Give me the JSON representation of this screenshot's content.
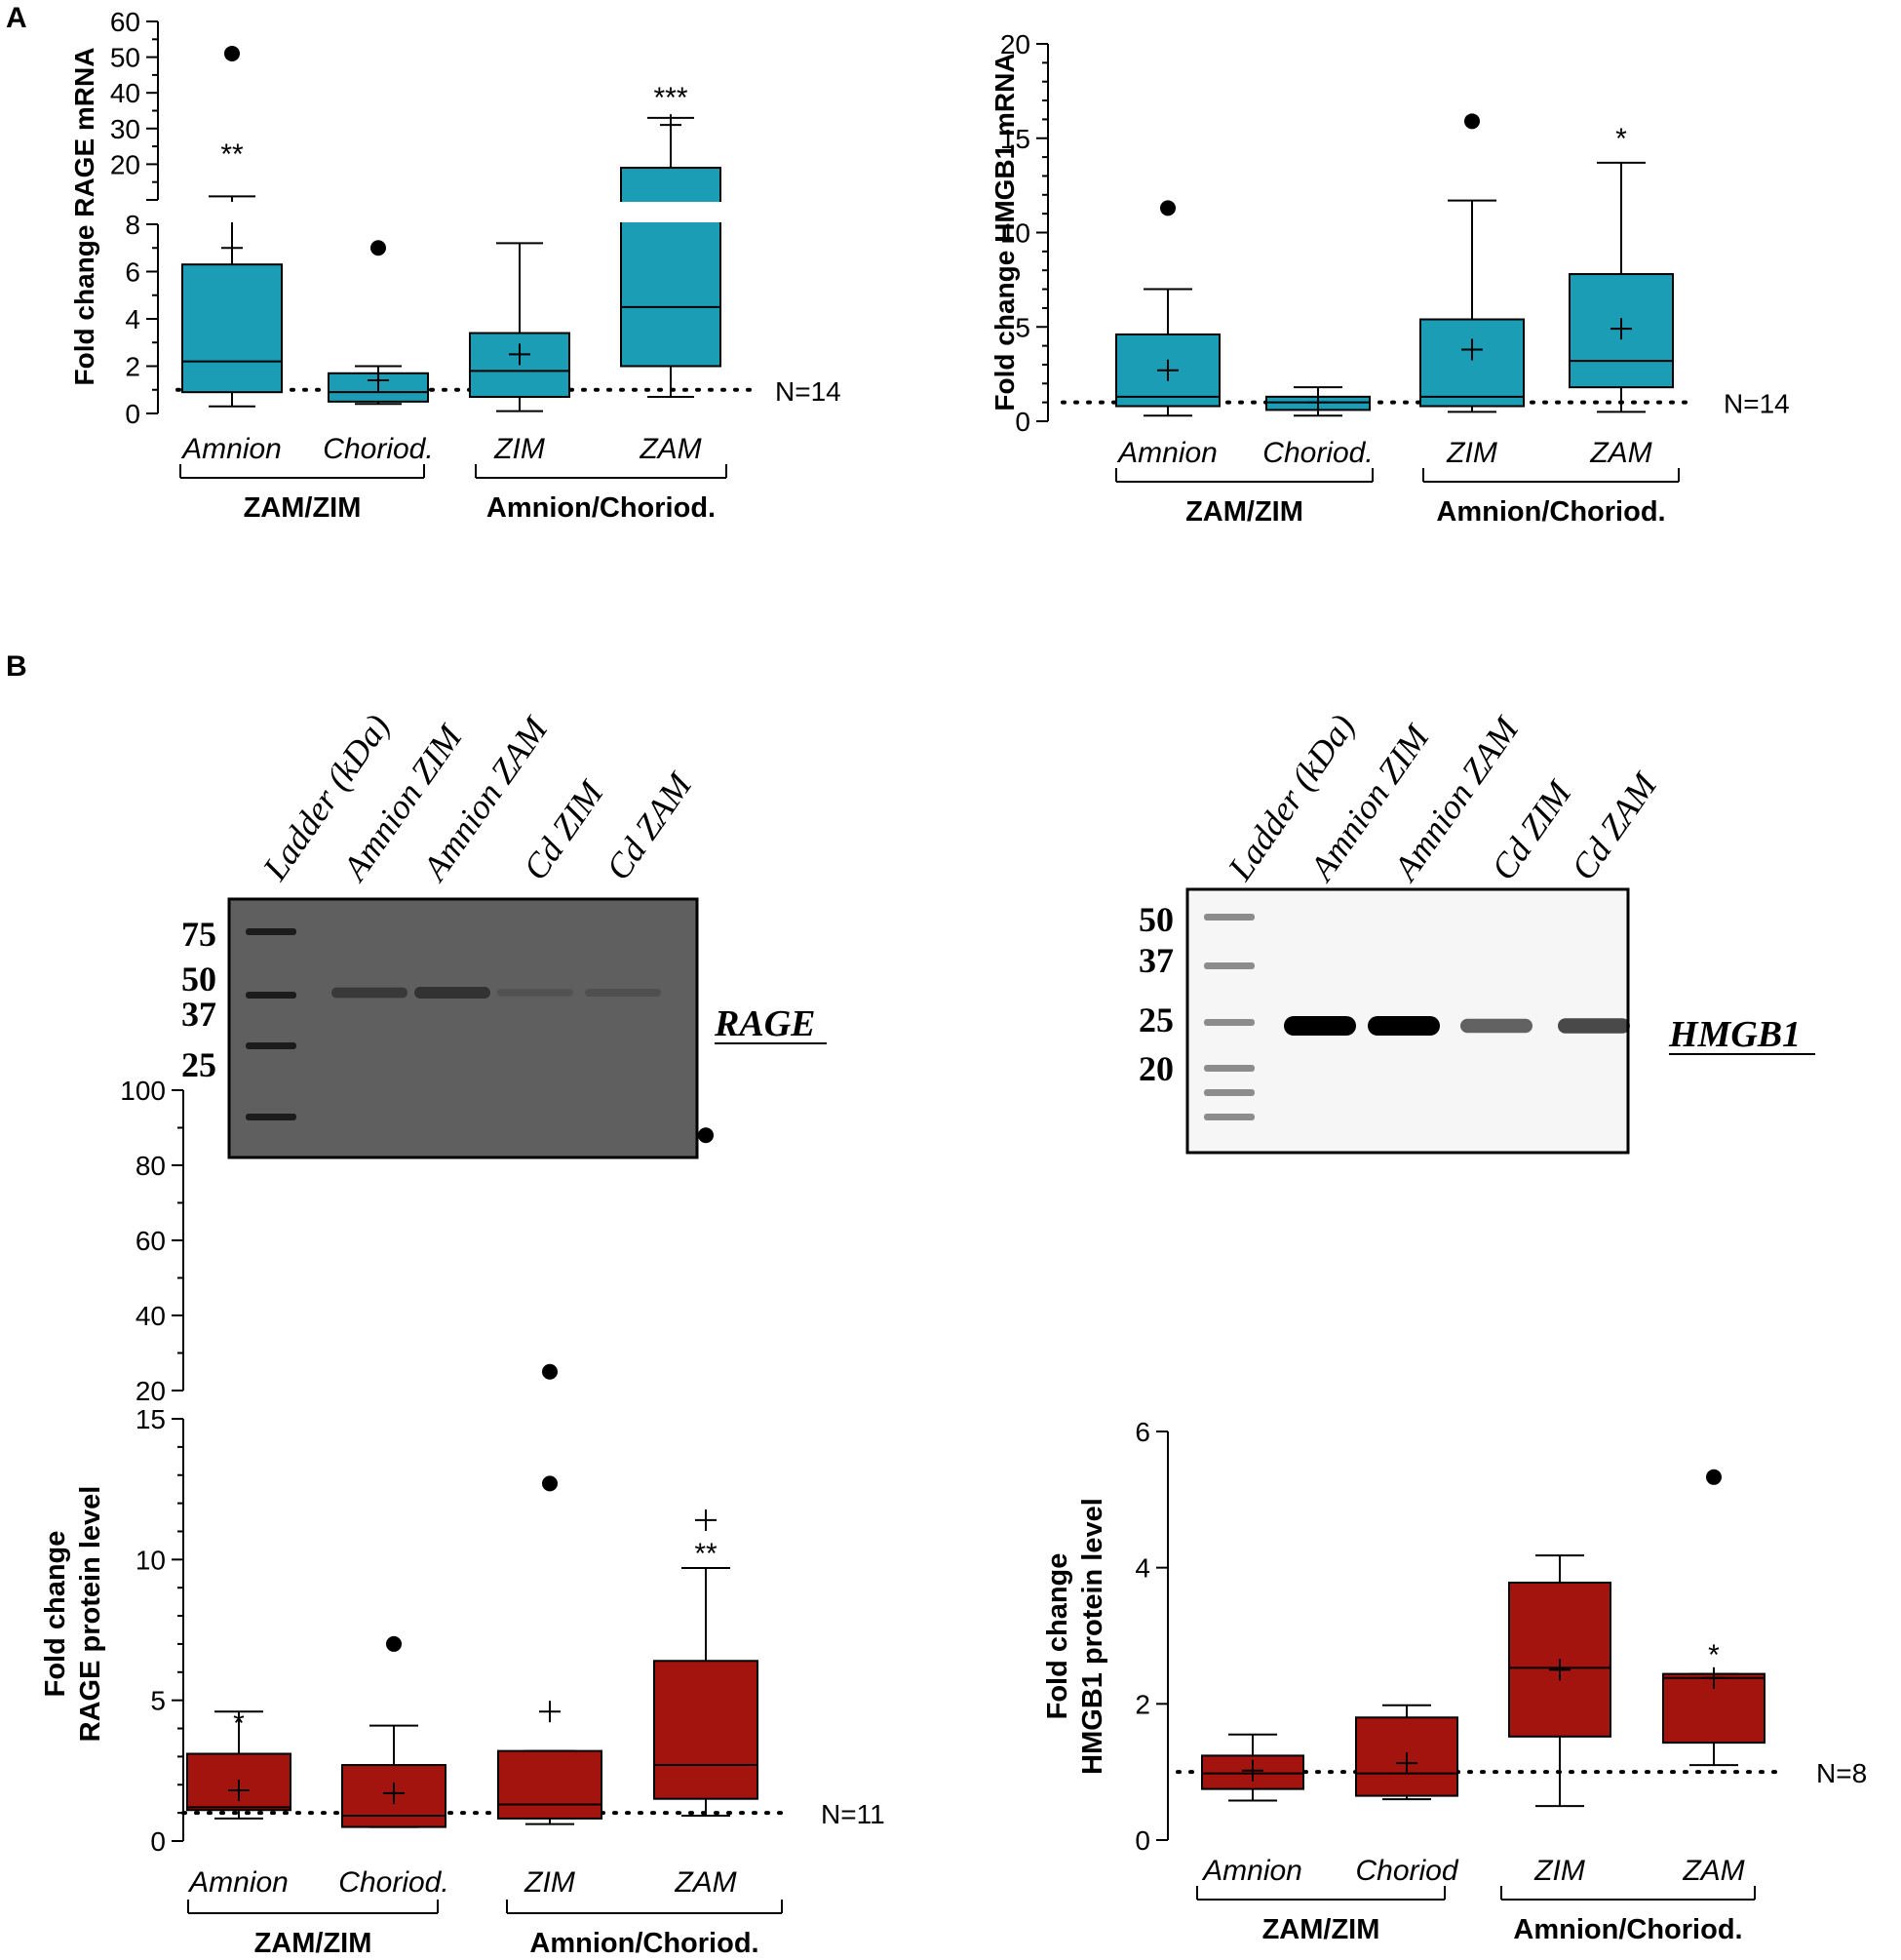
{
  "panel_labels": {
    "a": "A",
    "b": "B"
  },
  "colors": {
    "teal": "#1b9db5",
    "red": "#a3140f",
    "black": "#000000",
    "white": "#ffffff"
  },
  "group_labels": {
    "left": "ZAM/ZIM",
    "right": "Amnion/Choriod."
  },
  "chart_data": [
    {
      "id": "rage_mrna",
      "type": "boxplot",
      "ylabel": "Fold change RAGE mRNA",
      "color": "teal",
      "categories": [
        "Amnion",
        "Choriod.",
        "ZIM",
        "ZAM"
      ],
      "n_label": "N=14",
      "reference_line": 1,
      "axis_break": {
        "lower_range": [
          0,
          8
        ],
        "upper_range": [
          10,
          60
        ]
      },
      "lower_ticks": [
        "0",
        "2",
        "4",
        "6",
        "8"
      ],
      "upper_ticks": [
        "20",
        "30",
        "40",
        "50",
        "60"
      ],
      "boxes": [
        {
          "whisker_low": 0.3,
          "q1": 0.9,
          "median": 2.2,
          "q3": 6.3,
          "whisker_high": 11.0,
          "mean": 7.0,
          "outliers": [
            51
          ],
          "sig": "**"
        },
        {
          "whisker_low": 0.4,
          "q1": 0.5,
          "median": 0.9,
          "q3": 1.7,
          "whisker_high": 2.0,
          "mean": 1.4,
          "outliers": [
            7.0
          ],
          "sig": ""
        },
        {
          "whisker_low": 0.1,
          "q1": 0.7,
          "median": 1.8,
          "q3": 3.4,
          "whisker_high": 7.2,
          "mean": 2.5,
          "outliers": [],
          "sig": ""
        },
        {
          "whisker_low": 0.7,
          "q1": 2.0,
          "median": 4.5,
          "q3": 19.0,
          "whisker_high": 33.0,
          "mean": 31.0,
          "outliers": [],
          "sig": "***"
        }
      ]
    },
    {
      "id": "hmgb1_mrna",
      "type": "boxplot",
      "ylabel": "Fold change HMGB1 mRNA",
      "color": "teal",
      "categories": [
        "Amnion",
        "Choriod.",
        "ZIM",
        "ZAM"
      ],
      "n_label": "N=14",
      "reference_line": 1,
      "ylim": [
        0,
        20
      ],
      "ticks": [
        "0",
        "5",
        "10",
        "15",
        "20"
      ],
      "boxes": [
        {
          "whisker_low": 0.3,
          "q1": 0.8,
          "median": 1.3,
          "q3": 4.6,
          "whisker_high": 7.0,
          "mean": 2.7,
          "outliers": [
            11.3
          ],
          "sig": ""
        },
        {
          "whisker_low": 0.3,
          "q1": 0.6,
          "median": 1.0,
          "q3": 1.3,
          "whisker_high": 1.8,
          "mean": 1.0,
          "outliers": [],
          "sig": ""
        },
        {
          "whisker_low": 0.5,
          "q1": 0.8,
          "median": 1.3,
          "q3": 5.4,
          "whisker_high": 11.7,
          "mean": 3.8,
          "outliers": [
            15.9
          ],
          "sig": ""
        },
        {
          "whisker_low": 0.5,
          "q1": 1.8,
          "median": 3.2,
          "q3": 7.8,
          "whisker_high": 13.7,
          "mean": 4.9,
          "outliers": [],
          "sig": "*"
        }
      ]
    },
    {
      "id": "rage_protein",
      "type": "boxplot",
      "ylabel_lines": [
        "Fold change",
        "RAGE protein level"
      ],
      "color": "red",
      "categories": [
        "Amnion",
        "Choriod.",
        "ZIM",
        "ZAM"
      ],
      "n_label": "N=11",
      "reference_line": 1,
      "axis_break": {
        "lower_range": [
          0,
          15
        ],
        "upper_range": [
          20,
          100
        ]
      },
      "lower_ticks": [
        "0",
        "5",
        "10",
        "15"
      ],
      "upper_ticks": [
        "20",
        "40",
        "60",
        "80",
        "100"
      ],
      "boxes": [
        {
          "whisker_low": 0.8,
          "q1": 1.1,
          "median": 1.2,
          "q3": 3.1,
          "whisker_high": 4.6,
          "mean": 1.8,
          "outliers": [],
          "sig": "*"
        },
        {
          "whisker_low": 0.5,
          "q1": 0.5,
          "median": 0.9,
          "q3": 2.7,
          "whisker_high": 4.1,
          "mean": 1.7,
          "outliers": [
            7.0
          ],
          "sig": ""
        },
        {
          "whisker_low": 0.6,
          "q1": 0.8,
          "median": 1.3,
          "q3": 3.2,
          "whisker_high": 3.2,
          "mean": 4.6,
          "outliers": [
            12.7,
            25
          ],
          "sig": ""
        },
        {
          "whisker_low": 0.9,
          "q1": 1.5,
          "median": 2.7,
          "q3": 6.4,
          "whisker_high": 9.7,
          "mean": 11.4,
          "outliers": [
            88
          ],
          "sig": "**"
        }
      ]
    },
    {
      "id": "hmgb1_protein",
      "type": "boxplot",
      "ylabel_lines": [
        "Fold change",
        "HMGB1 protein level"
      ],
      "color": "red",
      "categories": [
        "Amnion",
        "Choriod",
        "ZIM",
        "ZAM"
      ],
      "n_label": "N=8",
      "reference_line": 1,
      "ylim": [
        0,
        6
      ],
      "ticks": [
        "0",
        "2",
        "4",
        "6"
      ],
      "boxes": [
        {
          "whisker_low": 0.58,
          "q1": 0.75,
          "median": 0.98,
          "q3": 1.24,
          "whisker_high": 1.55,
          "mean": 1.02,
          "outliers": [],
          "sig": ""
        },
        {
          "whisker_low": 0.6,
          "q1": 0.65,
          "median": 0.98,
          "q3": 1.8,
          "whisker_high": 1.98,
          "mean": 1.13,
          "outliers": [],
          "sig": ""
        },
        {
          "whisker_low": 0.5,
          "q1": 1.52,
          "median": 2.53,
          "q3": 3.78,
          "whisker_high": 4.18,
          "mean": 2.5,
          "outliers": [],
          "sig": ""
        },
        {
          "whisker_low": 1.1,
          "q1": 1.43,
          "median": 2.38,
          "q3": 2.44,
          "whisker_high": 2.44,
          "mean": 2.38,
          "outliers": [
            5.33
          ],
          "sig": "*"
        }
      ]
    }
  ],
  "blots": [
    {
      "id": "rage_blot",
      "lane_labels": [
        "Ladder (kDa)",
        "Amnion ZIM",
        "Amnion ZAM",
        "Cd ZIM",
        "Cd ZAM"
      ],
      "markers": [
        "75",
        "50",
        "37",
        "25"
      ],
      "protein": "RAGE",
      "band_strength": [
        0.55,
        0.7,
        0.1,
        0.15
      ]
    },
    {
      "id": "hmgb1_blot",
      "lane_labels": [
        "Ladder (kDa)",
        "Amnion ZIM",
        "Amnion ZAM",
        "Cd ZIM",
        "Cd ZAM"
      ],
      "markers": [
        "50",
        "37",
        "25",
        "20"
      ],
      "protein": "HMGB1",
      "band_strength": [
        1.0,
        1.0,
        0.45,
        0.55
      ]
    }
  ]
}
